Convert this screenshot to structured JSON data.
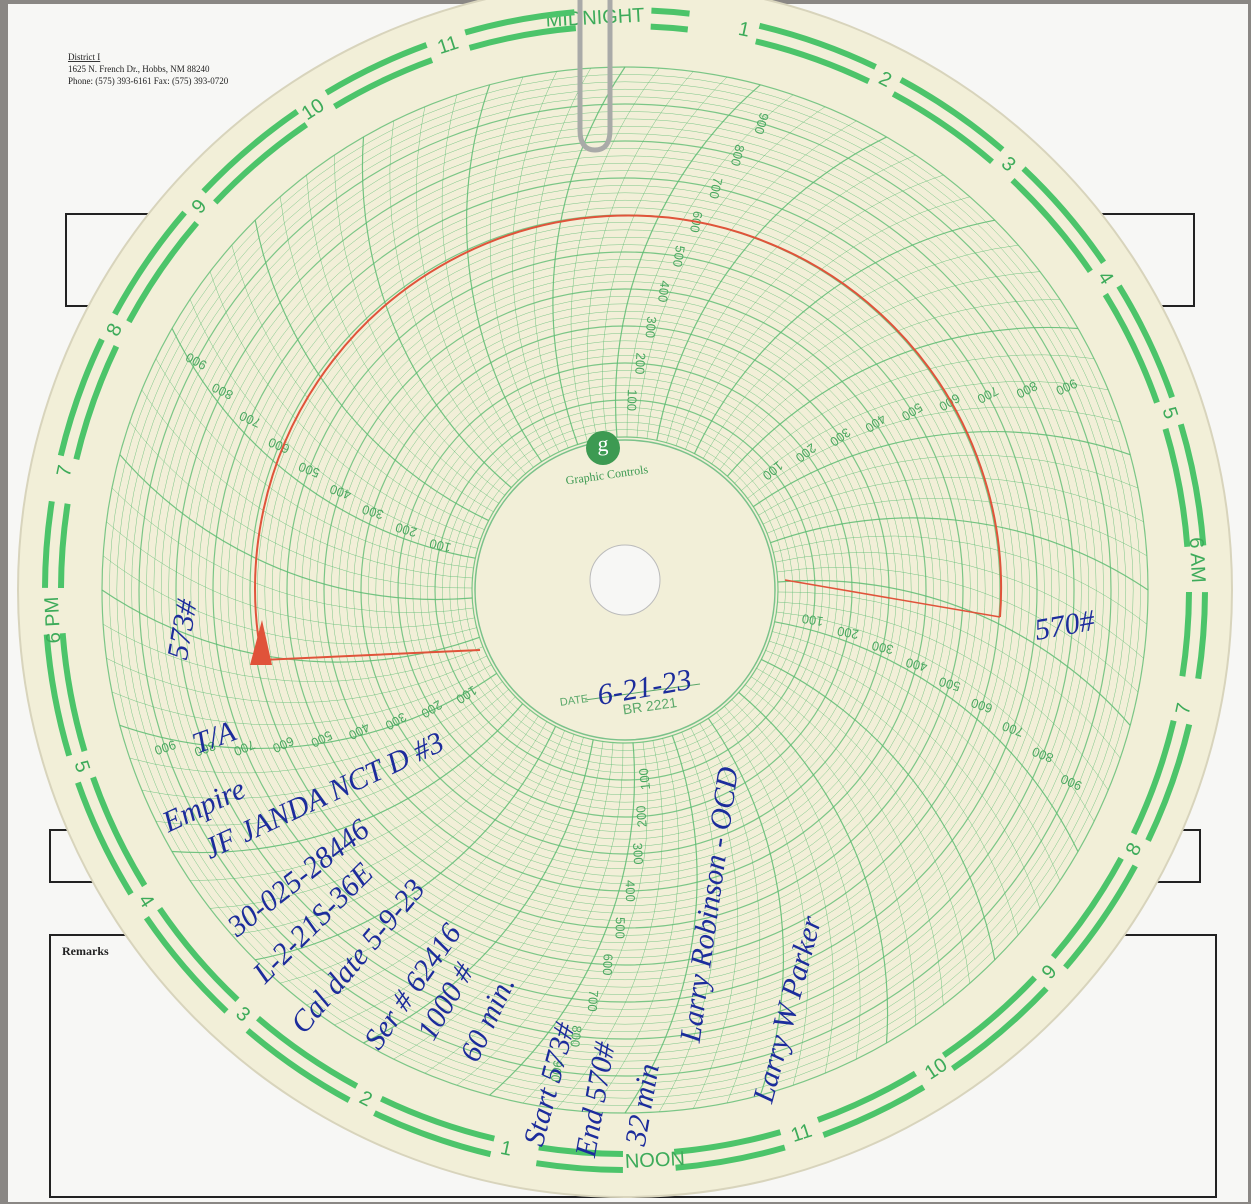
{
  "form": {
    "district": "District I",
    "address": "1625 N. French Dr., Hobbs, NM 88240",
    "phone": "Phone: (575) 393-6161  Fax: (575) 393-0720",
    "remarks": "Remarks"
  },
  "chart": {
    "brand": "Graphic Controls",
    "date_label": "DATE",
    "model": "BR 2221",
    "hour_labels": [
      "MIDNIGHT",
      "1",
      "2",
      "3",
      "4",
      "5",
      "6 AM",
      "7",
      "8",
      "9",
      "10",
      "11",
      "NOON",
      "1",
      "2",
      "3",
      "4",
      "5",
      "6 PM",
      "7",
      "8",
      "9",
      "10",
      "11"
    ],
    "scale_labels": [
      100,
      200,
      300,
      400,
      500,
      600,
      700,
      800,
      900
    ]
  },
  "handwriting": {
    "left_reading": "573#",
    "right_reading": "570#",
    "date": "6-21-23",
    "status": "T/A",
    "operator": "Empire",
    "well": "JF JANDA NCT D #3",
    "api": "30-025-28446",
    "location": "L-2-21S-36E",
    "cal_date": "Cal date 5-9-23",
    "serial": "Ser # 62416",
    "range": "1000 #",
    "duration": "60 min.",
    "start": "Start 573#",
    "end": "End 570#",
    "elapsed": "32 min",
    "witness": "Larry Robinson - OCD",
    "signature": "Larry W Parker"
  }
}
